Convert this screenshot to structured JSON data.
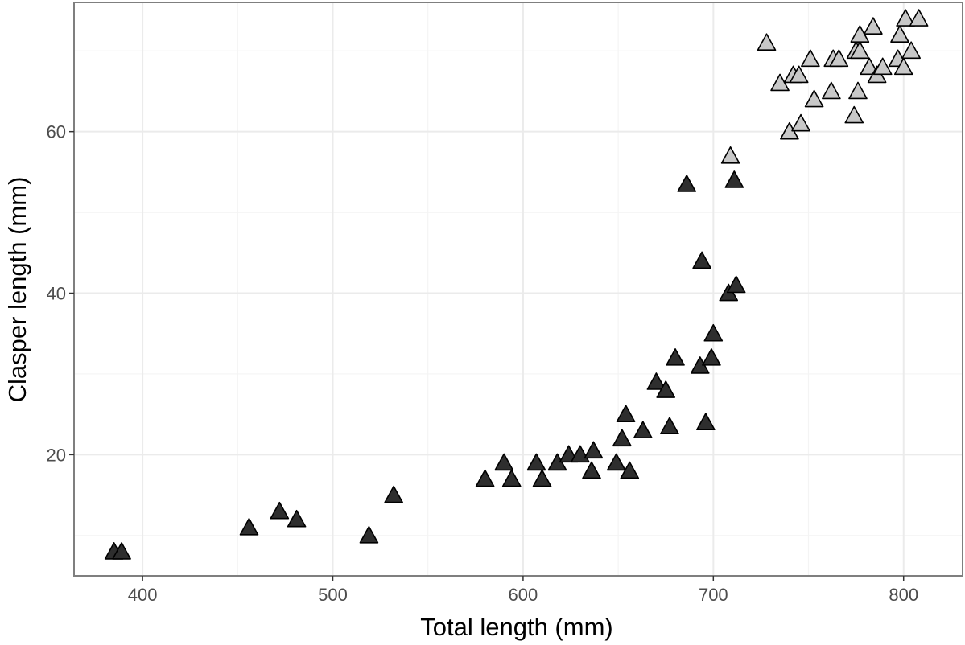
{
  "chart_data": {
    "type": "scatter",
    "title": "",
    "xlabel": "Total length (mm)",
    "ylabel": "Clasper length (mm)",
    "xlim": [
      364,
      831
    ],
    "ylim": [
      5,
      76
    ],
    "x_ticks": [
      400,
      500,
      600,
      700,
      800
    ],
    "y_ticks": [
      20,
      40,
      60
    ],
    "x_minor": [
      450,
      550,
      650,
      750
    ],
    "y_minor": [
      10,
      30,
      50,
      70
    ],
    "grid": true,
    "legend": "none",
    "marker": "triangle",
    "colors": {
      "background": "#ffffff",
      "grid_major": "#ebebeb",
      "grid_minor": "#f4f4f4",
      "panel_border": "#7f7f7f",
      "tick_text": "#4d4d4d",
      "group_dark": "#2e2e2e",
      "group_light": "#c8c8c8",
      "marker_edge": "#000000"
    },
    "series": [
      {
        "color": "#2e2e2e",
        "points": [
          [
            385,
            8
          ],
          [
            389,
            8
          ],
          [
            456,
            11
          ],
          [
            472,
            13
          ],
          [
            481,
            12
          ],
          [
            519,
            10
          ],
          [
            532,
            15
          ],
          [
            580,
            17
          ],
          [
            590,
            19
          ],
          [
            594,
            17
          ],
          [
            607,
            19
          ],
          [
            610,
            17
          ],
          [
            618,
            19
          ],
          [
            624,
            20
          ],
          [
            630,
            20
          ],
          [
            636,
            18
          ],
          [
            637,
            20.5
          ],
          [
            649,
            19
          ],
          [
            652,
            22
          ],
          [
            654,
            25
          ],
          [
            656,
            18
          ],
          [
            663,
            23
          ],
          [
            670,
            29
          ],
          [
            675,
            28
          ],
          [
            677,
            23.5
          ],
          [
            680,
            32
          ],
          [
            686,
            53.5
          ],
          [
            693,
            31
          ],
          [
            694,
            44
          ],
          [
            696,
            24
          ],
          [
            699,
            32
          ],
          [
            700,
            35
          ],
          [
            708,
            40
          ],
          [
            711,
            54
          ],
          [
            712,
            41
          ]
        ]
      },
      {
        "color": "#c8c8c8",
        "points": [
          [
            709,
            57
          ],
          [
            728,
            71
          ],
          [
            735,
            66
          ],
          [
            740,
            60
          ],
          [
            742,
            67
          ],
          [
            745,
            67
          ],
          [
            746,
            61
          ],
          [
            751,
            69
          ],
          [
            753,
            64
          ],
          [
            762,
            65
          ],
          [
            763,
            69
          ],
          [
            766,
            69
          ],
          [
            774,
            62
          ],
          [
            775,
            70
          ],
          [
            776,
            65
          ],
          [
            777,
            72
          ],
          [
            777,
            70
          ],
          [
            782,
            68
          ],
          [
            784,
            73
          ],
          [
            786,
            67
          ],
          [
            789,
            68
          ],
          [
            797,
            69
          ],
          [
            798,
            72
          ],
          [
            800,
            68
          ],
          [
            801,
            74
          ],
          [
            804,
            70
          ],
          [
            808,
            74
          ]
        ]
      }
    ]
  }
}
